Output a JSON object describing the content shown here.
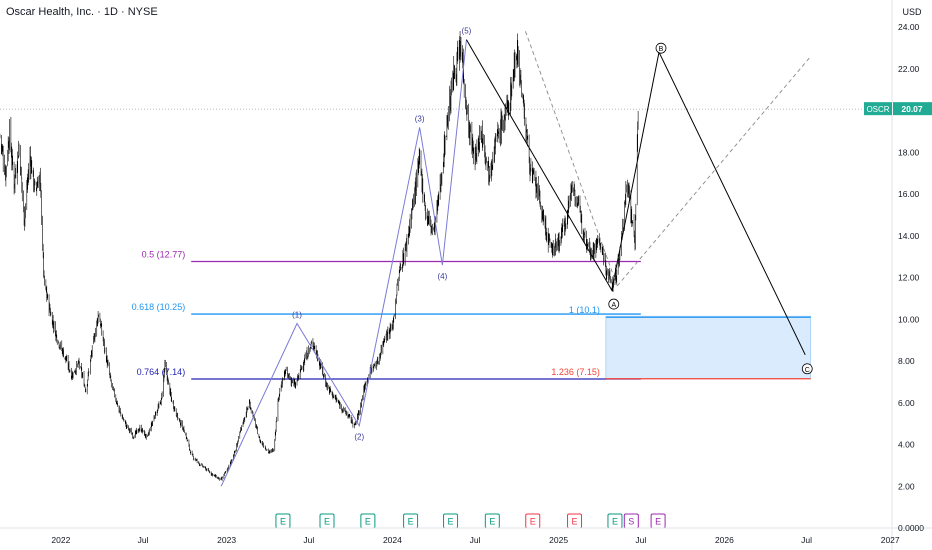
{
  "header": {
    "symbol_name": "Oscar Health, Inc.",
    "interval": "1D",
    "exchange": "NYSE",
    "separator": "·"
  },
  "price_axis": {
    "currency_label": "USD"
  },
  "last_price": {
    "ticker": "OSCR",
    "value": "20.07",
    "price": 20.07,
    "color": "#22ab94"
  },
  "colors": {
    "candles": "#000000",
    "wave_projection": "#000000",
    "impulse_lines": "#7b7bd6",
    "fib_05": "#9c27b0",
    "fib_0618": "#2196f3",
    "fib_0764": "#2424b4",
    "fib_ext_1236": "#f44336",
    "target_zone": "#cfe6fb",
    "earnings_green": "#089981",
    "earnings_red": "#f23645",
    "dividend_purple": "#9c27b0"
  },
  "chart_data": {
    "type": "candlestick",
    "title": "Oscar Health, Inc. · 1D · NYSE",
    "ylim": [
      0,
      25.3
    ],
    "y_ticks": [
      {
        "value": 0,
        "label": "0.0000"
      },
      {
        "value": 2,
        "label": "2.00"
      },
      {
        "value": 4,
        "label": "4.00"
      },
      {
        "value": 6,
        "label": "6.00"
      },
      {
        "value": 8,
        "label": "8.00"
      },
      {
        "value": 10,
        "label": "10.00"
      },
      {
        "value": 12,
        "label": "12.00"
      },
      {
        "value": 14,
        "label": "14.00"
      },
      {
        "value": 16,
        "label": "16.00"
      },
      {
        "value": 18,
        "label": "18.00"
      },
      {
        "value": 20,
        "label": "20.00"
      },
      {
        "value": 22,
        "label": "22.00"
      },
      {
        "value": 24,
        "label": "24.00"
      }
    ],
    "xlim": [
      "2021-08-20",
      "2027-01-05"
    ],
    "x_ticks": [
      {
        "date": "2022-01-01",
        "label": "2022"
      },
      {
        "date": "2022-07-01",
        "label": "Jul"
      },
      {
        "date": "2023-01-01",
        "label": "2023"
      },
      {
        "date": "2023-07-01",
        "label": "Jul"
      },
      {
        "date": "2024-01-01",
        "label": "2024"
      },
      {
        "date": "2024-07-01",
        "label": "Jul"
      },
      {
        "date": "2025-01-01",
        "label": "2025"
      },
      {
        "date": "2025-07-01",
        "label": "Jul"
      },
      {
        "date": "2026-01-01",
        "label": "2026"
      },
      {
        "date": "2026-07-01",
        "label": "Jul"
      },
      {
        "date": "2027-01-01",
        "label": "2027"
      }
    ],
    "price_path": [
      [
        "2021-08-20",
        18.8
      ],
      [
        "2021-09-01",
        17.0
      ],
      [
        "2021-09-10",
        19.0
      ],
      [
        "2021-09-20",
        16.5
      ],
      [
        "2021-10-01",
        18.3
      ],
      [
        "2021-10-12",
        14.8
      ],
      [
        "2021-10-25",
        17.8
      ],
      [
        "2021-11-05",
        16.2
      ],
      [
        "2021-11-16",
        16.8
      ],
      [
        "2021-11-25",
        11.8
      ],
      [
        "2021-12-10",
        10.2
      ],
      [
        "2021-12-25",
        9.0
      ],
      [
        "2022-01-10",
        8.2
      ],
      [
        "2022-01-25",
        7.3
      ],
      [
        "2022-02-10",
        7.9
      ],
      [
        "2022-02-25",
        6.6
      ],
      [
        "2022-03-12",
        8.7
      ],
      [
        "2022-03-25",
        10.3
      ],
      [
        "2022-04-08",
        8.5
      ],
      [
        "2022-04-22",
        6.9
      ],
      [
        "2022-05-10",
        5.6
      ],
      [
        "2022-05-25",
        4.9
      ],
      [
        "2022-06-10",
        4.4
      ],
      [
        "2022-06-25",
        4.8
      ],
      [
        "2022-07-10",
        4.3
      ],
      [
        "2022-07-25",
        5.3
      ],
      [
        "2022-08-10",
        6.1
      ],
      [
        "2022-08-18",
        7.8
      ],
      [
        "2022-09-01",
        6.2
      ],
      [
        "2022-09-15",
        5.3
      ],
      [
        "2022-10-01",
        4.6
      ],
      [
        "2022-10-15",
        3.5
      ],
      [
        "2022-11-01",
        3.1
      ],
      [
        "2022-11-18",
        2.8
      ],
      [
        "2022-12-05",
        2.5
      ],
      [
        "2022-12-20",
        2.3
      ],
      [
        "2023-01-05",
        2.9
      ],
      [
        "2023-01-20",
        3.7
      ],
      [
        "2023-02-05",
        5.0
      ],
      [
        "2023-02-20",
        6.0
      ],
      [
        "2023-03-05",
        5.0
      ],
      [
        "2023-03-15",
        4.2
      ],
      [
        "2023-04-05",
        3.6
      ],
      [
        "2023-04-15",
        3.8
      ],
      [
        "2023-04-25",
        6.3
      ],
      [
        "2023-05-10",
        7.5
      ],
      [
        "2023-06-01",
        6.8
      ],
      [
        "2023-06-20",
        8.0
      ],
      [
        "2023-07-10",
        8.9
      ],
      [
        "2023-07-25",
        7.9
      ],
      [
        "2023-08-10",
        6.8
      ],
      [
        "2023-08-25",
        6.3
      ],
      [
        "2023-09-10",
        5.8
      ],
      [
        "2023-09-25",
        5.4
      ],
      [
        "2023-10-10",
        4.9
      ],
      [
        "2023-10-20",
        5.6
      ],
      [
        "2023-11-01",
        6.8
      ],
      [
        "2023-11-15",
        7.6
      ],
      [
        "2023-12-01",
        8.0
      ],
      [
        "2023-12-15",
        9.2
      ],
      [
        "2024-01-01",
        9.6
      ],
      [
        "2024-01-15",
        12.1
      ],
      [
        "2024-02-01",
        13.6
      ],
      [
        "2024-02-15",
        15.5
      ],
      [
        "2024-03-01",
        17.6
      ],
      [
        "2024-03-15",
        15.0
      ],
      [
        "2024-04-01",
        14.2
      ],
      [
        "2024-04-15",
        16.3
      ],
      [
        "2024-05-01",
        19.6
      ],
      [
        "2024-05-15",
        21.7
      ],
      [
        "2024-06-01",
        23.0
      ],
      [
        "2024-06-15",
        19.4
      ],
      [
        "2024-07-01",
        17.6
      ],
      [
        "2024-07-15",
        19.1
      ],
      [
        "2024-08-01",
        17.0
      ],
      [
        "2024-08-15",
        18.5
      ],
      [
        "2024-09-01",
        19.5
      ],
      [
        "2024-09-15",
        20.4
      ],
      [
        "2024-10-01",
        23.1
      ],
      [
        "2024-10-15",
        20.3
      ],
      [
        "2024-11-01",
        17.0
      ],
      [
        "2024-11-15",
        16.2
      ],
      [
        "2024-12-01",
        14.5
      ],
      [
        "2024-12-15",
        13.3
      ],
      [
        "2025-01-01",
        13.7
      ],
      [
        "2025-01-15",
        14.6
      ],
      [
        "2025-02-01",
        16.5
      ],
      [
        "2025-02-15",
        15.2
      ],
      [
        "2025-03-01",
        14.0
      ],
      [
        "2025-03-15",
        13.2
      ],
      [
        "2025-04-01",
        13.8
      ],
      [
        "2025-04-15",
        12.4
      ],
      [
        "2025-05-01",
        11.6
      ],
      [
        "2025-05-15",
        12.9
      ],
      [
        "2025-06-01",
        16.8
      ],
      [
        "2025-06-10",
        15.0
      ],
      [
        "2025-06-18",
        13.8
      ],
      [
        "2025-06-25",
        20.1
      ]
    ],
    "horizontal_levels": [
      {
        "label": "0.5 (12.77)",
        "price": 12.77,
        "color": "#9c27b0",
        "from": "2022-10-15",
        "to": "2025-07-01"
      },
      {
        "label": "0.618 (10.25)",
        "price": 10.25,
        "color": "#2196f3",
        "from": "2022-10-15",
        "to": "2025-07-01"
      },
      {
        "label": "0.764 (7.14)",
        "price": 7.14,
        "color": "#2424b4",
        "from": "2022-10-15",
        "to": "2025-07-01"
      },
      {
        "label": "1 (10.1)",
        "price": 10.1,
        "color": "#2196f3",
        "from": "2025-04-15",
        "to": "2026-07-10",
        "label_only_partial": true
      },
      {
        "label": "1.236 (7.15)",
        "price": 7.15,
        "color": "#f44336",
        "from": "2025-04-15",
        "to": "2026-07-10"
      }
    ],
    "target_zone": {
      "from": "2025-04-15",
      "to": "2026-07-10",
      "top": 10.15,
      "bottom": 7.15
    },
    "impulse_wave": [
      {
        "date": "2022-12-20",
        "price": 2.0,
        "label": ""
      },
      {
        "date": "2023-06-05",
        "price": 9.8,
        "label": "(1)"
      },
      {
        "date": "2023-10-20",
        "price": 4.9,
        "label": "(2)"
      },
      {
        "date": "2024-03-01",
        "price": 19.2,
        "label": "(3)"
      },
      {
        "date": "2024-04-20",
        "price": 12.6,
        "label": "(4)"
      },
      {
        "date": "2024-06-12",
        "price": 23.4,
        "label": "(5)"
      }
    ],
    "correction_wave": [
      {
        "date": "2024-06-12",
        "price": 23.4,
        "label": ""
      },
      {
        "date": "2025-04-28",
        "price": 11.4,
        "label": "A"
      },
      {
        "date": "2025-08-10",
        "price": 22.8,
        "label": "B"
      },
      {
        "date": "2026-06-28",
        "price": 8.3,
        "label": "C"
      }
    ],
    "dashed_lines": [
      {
        "from_date": "2024-10-20",
        "from_price": 23.8,
        "to_date": "2025-05-10",
        "to_price": 11.6
      },
      {
        "from_date": "2025-05-10",
        "from_price": 11.6,
        "to_date": "2026-07-10",
        "to_price": 22.6
      }
    ],
    "events": [
      {
        "date": "2023-05-05",
        "type": "E",
        "color": "#089981"
      },
      {
        "date": "2023-08-10",
        "type": "E",
        "color": "#089981"
      },
      {
        "date": "2023-11-08",
        "type": "E",
        "color": "#089981"
      },
      {
        "date": "2024-02-10",
        "type": "E",
        "color": "#089981"
      },
      {
        "date": "2024-05-08",
        "type": "E",
        "color": "#089981"
      },
      {
        "date": "2024-08-08",
        "type": "E",
        "color": "#089981"
      },
      {
        "date": "2024-11-05",
        "type": "E",
        "color": "#f23645"
      },
      {
        "date": "2025-02-05",
        "type": "E",
        "color": "#f23645"
      },
      {
        "date": "2025-05-05",
        "type": "E",
        "color": "#089981"
      },
      {
        "date": "2025-06-10",
        "type": "S",
        "color": "#9c27b0"
      },
      {
        "date": "2025-08-08",
        "type": "E",
        "color": "#9c27b0"
      }
    ]
  }
}
